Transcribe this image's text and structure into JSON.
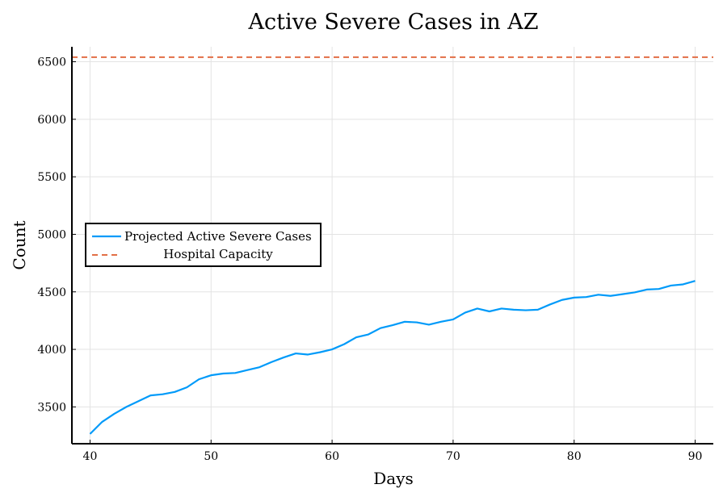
{
  "chart_data": {
    "type": "line",
    "title": "Active Severe Cases in AZ",
    "xlabel": "Days",
    "ylabel": "Count",
    "xlim": [
      38.5,
      91.5
    ],
    "ylim": [
      3180,
      6630
    ],
    "xticks": [
      40,
      50,
      60,
      70,
      80,
      90
    ],
    "yticks": [
      3500,
      4000,
      4500,
      5000,
      5500,
      6000,
      6500
    ],
    "grid": true,
    "legend_position": "middle-left",
    "series": [
      {
        "name": "Projected Active Severe Cases",
        "style": "solid",
        "color": "#009af9",
        "x": [
          40,
          41,
          42,
          43,
          44,
          45,
          46,
          47,
          48,
          49,
          50,
          51,
          52,
          53,
          54,
          55,
          56,
          57,
          58,
          59,
          60,
          61,
          62,
          63,
          64,
          65,
          66,
          67,
          68,
          69,
          70,
          71,
          72,
          73,
          74,
          75,
          76,
          77,
          78,
          79,
          80,
          81,
          82,
          83,
          84,
          85,
          86,
          87,
          88,
          89,
          90
        ],
        "values": [
          3265,
          3370,
          3440,
          3500,
          3550,
          3600,
          3610,
          3630,
          3670,
          3740,
          3775,
          3790,
          3795,
          3820,
          3845,
          3890,
          3930,
          3965,
          3955,
          3975,
          4000,
          4045,
          4105,
          4130,
          4185,
          4210,
          4240,
          4235,
          4215,
          4240,
          4260,
          4320,
          4355,
          4330,
          4355,
          4345,
          4340,
          4345,
          4390,
          4430,
          4450,
          4455,
          4475,
          4465,
          4480,
          4495,
          4520,
          4525,
          4555,
          4565,
          4595
        ]
      },
      {
        "name": "Hospital Capacity",
        "style": "dashed",
        "color": "#e26f46",
        "constant": 6540
      }
    ]
  }
}
